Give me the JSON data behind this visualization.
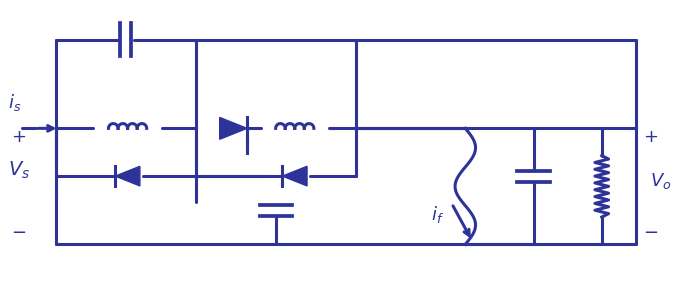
{
  "color": "#2d3399",
  "lw": 2.2,
  "figsize": [
    6.85,
    2.84
  ],
  "dpi": 100,
  "bg_color": "#ffffff"
}
